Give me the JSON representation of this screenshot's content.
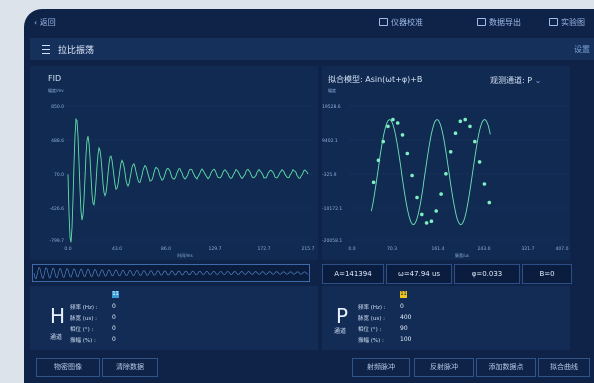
{
  "topbar": {
    "back": "‹ 返回",
    "links": [
      "仪器校准",
      "数据导出",
      "实验图"
    ]
  },
  "header": {
    "title": "拉比振荡",
    "settings": "设置"
  },
  "fid": {
    "title": "FID",
    "yunit": "幅度/mv",
    "yticks": [
      "850.0",
      "488.6",
      "70.0",
      "-426.6",
      "-799.7"
    ],
    "xticks": [
      "0.0",
      "43.0",
      "86.0",
      "129.7",
      "172.7",
      "215.7"
    ],
    "xlabel": "时间/ms"
  },
  "fit": {
    "title": "拟合模型:  Asin(ωt+φ)+B",
    "channel_label": "观测通道:  P",
    "yunit": "幅度",
    "yticks": [
      "19528.6",
      "9402.1",
      "-325.9",
      "-10172.1",
      "-20058.1"
    ],
    "xticks": [
      "0.0",
      "70.3",
      "161.4",
      "243.0",
      "321.7",
      "407.0"
    ],
    "xlabel": "脉宽/us",
    "params": {
      "A": "A=141394",
      "omega": "ω=47.94 us",
      "phi": "φ=0.033",
      "B": "B=0"
    }
  },
  "h_channel": {
    "letter": "H",
    "label": "通道",
    "badge": "11",
    "rows": [
      {
        "k": "频率 (Hz) :",
        "v": "0"
      },
      {
        "k": "脉宽 (us) :",
        "v": "0"
      },
      {
        "k": "相位 (°) :",
        "v": "0"
      },
      {
        "k": "振幅 (%) :",
        "v": "0"
      }
    ]
  },
  "p_channel": {
    "letter": "P",
    "label": "通道",
    "badge": "11",
    "rows": [
      {
        "k": "频率 (Hz) :",
        "v": "0"
      },
      {
        "k": "脉宽 (us) :",
        "v": "400"
      },
      {
        "k": "相位 (°) :",
        "v": "90"
      },
      {
        "k": "振幅 (%) :",
        "v": "100"
      }
    ]
  },
  "buttons": {
    "sync": "物密图像",
    "clear": "清除数据",
    "transmit": "射频脉冲",
    "receive": "反射脉冲",
    "add_point": "添加数据点",
    "fit_curve": "拟合曲线"
  },
  "chart_data": [
    {
      "type": "line",
      "title": "FID",
      "ylabel": "幅度/mv",
      "xlabel": "时间/ms",
      "ylim": [
        -799.7,
        850.0
      ],
      "xlim": [
        0,
        215.7
      ],
      "series": [
        {
          "values": "damped oscillation"
        }
      ]
    },
    {
      "type": "scatter",
      "title": "拟合模型: Asin(ωt+φ)+B",
      "ylabel": "幅度",
      "xlabel": "脉宽/us",
      "xlim": [
        0,
        407.0
      ],
      "ylim": [
        -20058.1,
        19528.6
      ],
      "x": [
        44,
        53,
        62,
        71,
        80,
        89,
        98,
        107,
        116,
        125,
        134,
        143,
        152,
        161,
        170,
        179,
        188,
        197,
        206,
        215,
        224,
        233,
        242,
        251,
        260
      ],
      "y": [
        -3000,
        3500,
        9000,
        13500,
        15500,
        14500,
        11000,
        5500,
        -1000,
        -7500,
        -12500,
        -15000,
        -14500,
        -11500,
        -6500,
        -500,
        6000,
        11500,
        15000,
        15500,
        13500,
        9000,
        3000,
        -3500,
        -9000
      ]
    }
  ]
}
